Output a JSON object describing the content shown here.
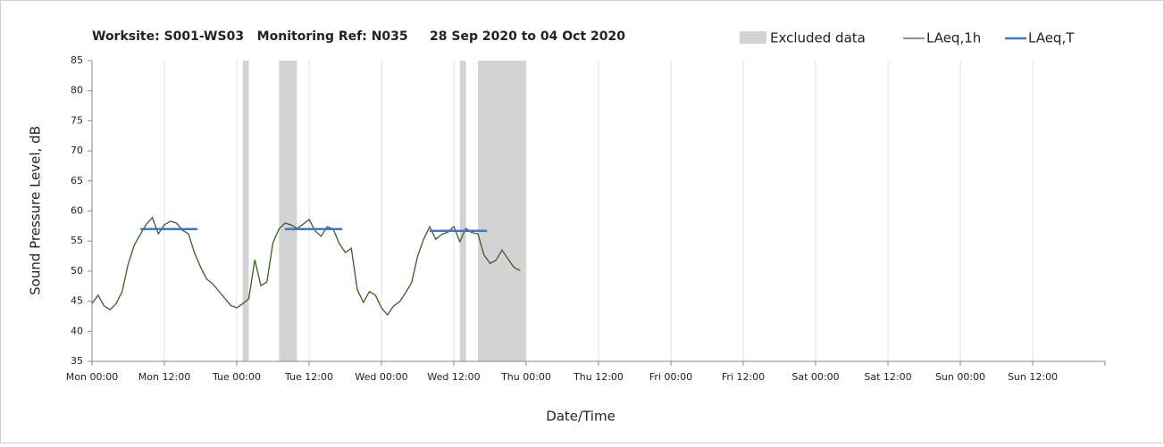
{
  "chart_data": {
    "type": "line",
    "title": "Worksite: S001-WS03   Monitoring Ref: N035     28 Sep 2020 to 04 Oct 2020",
    "xlabel": "Date/Time",
    "ylabel": "Sound Pressure Level, dB",
    "xlim": [
      0,
      168
    ],
    "xticks": [
      {
        "value": 0,
        "label": "Mon 00:00"
      },
      {
        "value": 12,
        "label": "Mon 12:00"
      },
      {
        "value": 24,
        "label": "Tue 00:00"
      },
      {
        "value": 36,
        "label": "Tue 12:00"
      },
      {
        "value": 48,
        "label": "Wed 00:00"
      },
      {
        "value": 60,
        "label": "Wed 12:00"
      },
      {
        "value": 72,
        "label": "Thu 00:00"
      },
      {
        "value": 84,
        "label": "Thu 12:00"
      },
      {
        "value": 96,
        "label": "Fri 00:00"
      },
      {
        "value": 108,
        "label": "Fri 12:00"
      },
      {
        "value": 120,
        "label": "Sat 00:00"
      },
      {
        "value": 132,
        "label": "Sat 12:00"
      },
      {
        "value": 144,
        "label": "Sun 00:00"
      },
      {
        "value": 156,
        "label": "Sun 12:00"
      }
    ],
    "ylim": [
      35,
      85
    ],
    "yticks": [
      35,
      40,
      45,
      50,
      55,
      60,
      65,
      70,
      75,
      80,
      85
    ],
    "grid": true,
    "legend": "top-right",
    "excluded": {
      "name": "Excluded data",
      "color": "#d3d3d3",
      "ranges": [
        [
          25,
          26
        ],
        [
          31,
          34
        ],
        [
          61,
          62
        ],
        [
          64,
          72
        ]
      ]
    },
    "series": [
      {
        "name": "LAeq,1h",
        "color": "#3d5c27",
        "x": [
          0,
          1,
          2,
          3,
          4,
          5,
          6,
          7,
          8,
          9,
          10,
          11,
          12,
          13,
          14,
          15,
          16,
          17,
          18,
          19,
          20,
          21,
          22,
          23,
          24,
          25,
          26,
          27,
          28,
          29,
          30,
          31,
          32,
          33,
          34,
          35,
          36,
          37,
          38,
          39,
          40,
          41,
          42,
          43,
          44,
          45,
          46,
          47,
          48,
          49,
          50,
          51,
          52,
          53,
          54,
          55,
          56,
          57,
          58,
          59,
          60,
          61,
          62,
          63,
          64,
          65,
          66,
          67,
          68,
          69,
          70,
          71
        ],
        "values": [
          44.6,
          46,
          44.2,
          43.6,
          44.6,
          46.6,
          51.2,
          54.3,
          56.1,
          57.8,
          58.9,
          56.2,
          57.7,
          58.3,
          58,
          56.8,
          56.2,
          53,
          50.7,
          48.7,
          47.9,
          46.7,
          45.5,
          44.3,
          43.9,
          44.6,
          45.4,
          51.9,
          47.6,
          48.2,
          54.7,
          57,
          58,
          57.7,
          57.1,
          57.8,
          58.6,
          56.7,
          55.8,
          57.4,
          57,
          54.6,
          53.1,
          53.8,
          46.9,
          44.8,
          46.6,
          46,
          43.9,
          42.7,
          44.2,
          44.9,
          46.4,
          48.1,
          52.5,
          55.3,
          57.4,
          55.3,
          56.1,
          56.5,
          57.4,
          54.9,
          57.1,
          56.4,
          56.2,
          52.7,
          51.3,
          51.8,
          53.5,
          52,
          50.6,
          50.1
        ]
      },
      {
        "name": "LAeq,T",
        "color": "#4472c4",
        "segments": [
          {
            "x": [
              8,
              17.5
            ],
            "value": 57
          },
          {
            "x": [
              32,
              41.5
            ],
            "value": 57
          },
          {
            "x": [
              56,
              65.5
            ],
            "value": 56.7
          }
        ]
      }
    ]
  }
}
